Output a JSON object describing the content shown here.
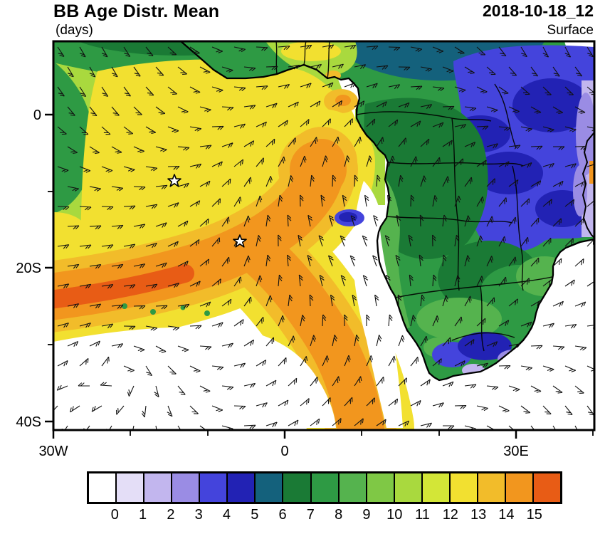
{
  "header": {
    "title": "BB Age Distr. Mean",
    "units_label": "(days)",
    "timestamp": "2018-10-18_12",
    "level": "Surface"
  },
  "chart_data": {
    "type": "heatmap",
    "title": "BB Age Distr. Mean",
    "units": "days",
    "timestamp": "2018-10-18_12",
    "level": "Surface",
    "map_region": "Africa and South Atlantic",
    "lon_range_deg": [
      -30,
      40
    ],
    "lat_range_deg": [
      -41,
      10
    ],
    "xticks": [
      "30W",
      "0",
      "30E"
    ],
    "yticks": [
      "0",
      "20S",
      "40S"
    ],
    "grid": false,
    "colorbar": {
      "orientation": "horizontal",
      "levels": [
        "0",
        "1",
        "2",
        "3",
        "4",
        "5",
        "6",
        "7",
        "8",
        "9",
        "10",
        "11",
        "12",
        "13",
        "14",
        "15"
      ],
      "colors": [
        "#ffffff",
        "#e4def7",
        "#c2b6ee",
        "#9a8ce4",
        "#4444dc",
        "#2222b4",
        "#14617c",
        "#1a7a35",
        "#2e9a44",
        "#55b34e",
        "#7fc845",
        "#a9d93e",
        "#d3e637",
        "#f2e030",
        "#f2bc2a",
        "#f2961e",
        "#e85c15"
      ]
    },
    "overlays": {
      "wind_barbs": true,
      "coastlines": true,
      "country_borders": true
    },
    "markers": [
      {
        "symbol": "star",
        "lon_approx": "14W",
        "lat_approx": "8.5S"
      },
      {
        "symbol": "star",
        "lon_approx": "6W",
        "lat_approx": "16.5S"
      }
    ],
    "features": [
      {
        "region": "SE Atlantic smoke plume off Angola toward 20S",
        "age_days": "13-15"
      },
      {
        "region": "Tropical Atlantic northwest of plume",
        "age_days": "9-13"
      },
      {
        "region": "Gulf of Guinea coastal waters",
        "age_days": "11-14"
      },
      {
        "region": "Central Africa / Congo basin land",
        "age_days": "6-9"
      },
      {
        "region": "Eastern and southern Africa interior",
        "age_days": "3-5"
      },
      {
        "region": "Far eastern edge (Indian Ocean)",
        "age_days": "1-3"
      },
      {
        "region": "South Atlantic south of ~25S and Namib coast",
        "age_days": "0-1"
      }
    ]
  }
}
